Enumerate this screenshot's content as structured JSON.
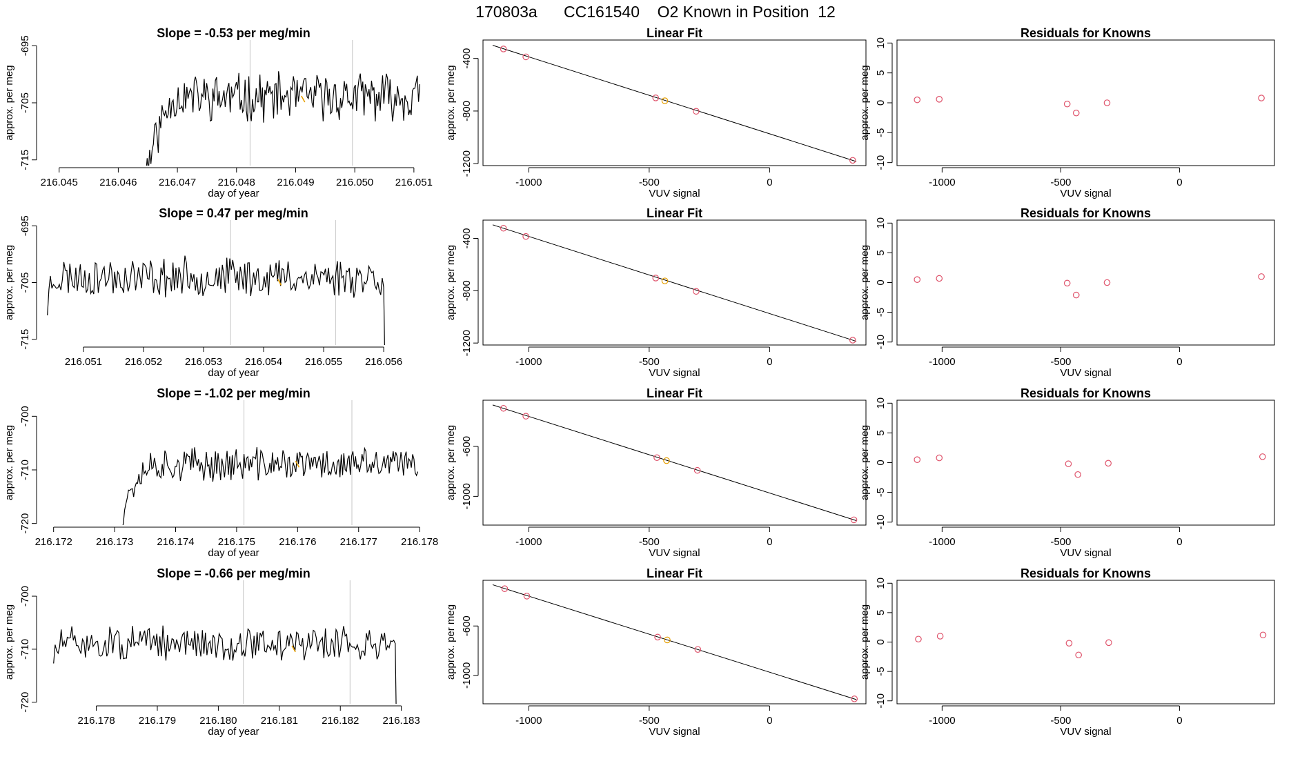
{
  "main_title": "170803a      CC161540    O2 Known in Position  12",
  "colors": {
    "line": "#000000",
    "marker_orange": "#e69f00",
    "marker_red": "#df536b",
    "vline": "#cfcfcf",
    "axis": "#000000"
  },
  "chart_data": [
    {
      "row": 1,
      "col": 1,
      "type": "line",
      "title": "Slope =  -0.53  per meg/min",
      "xlabel": "day of year",
      "ylabel": "approx. per meg",
      "xlim": [
        216.0447,
        216.0512
      ],
      "ylim": [
        -716,
        -694
      ],
      "xticks": [
        216.045,
        216.046,
        216.047,
        216.048,
        216.049,
        216.05,
        216.051
      ],
      "xtick_labels": [
        "216.045",
        "216.046",
        "216.047",
        "216.048",
        "216.049",
        "216.050",
        "216.051"
      ],
      "yticks": [
        -715,
        -705,
        -695
      ],
      "ytick_labels": [
        "-715",
        "-705",
        "-695"
      ],
      "x_start": 216.0463,
      "x_end": 216.0511,
      "ramp_start": -730,
      "level": -704,
      "ramp_frac": 0.13,
      "amp": 3.6,
      "seed": 11,
      "vlines": [
        216.04823,
        216.04996
      ],
      "marker_x": 216.04912,
      "marker_y": -704.4,
      "dip_end": false
    },
    {
      "row": 1,
      "col": 2,
      "type": "scatter",
      "title": "Linear Fit",
      "xlabel": "VUV signal",
      "ylabel": "approx. per meg",
      "xlim": [
        -1190,
        400
      ],
      "ylim": [
        -1215,
        -260
      ],
      "xticks": [
        -1000,
        -500,
        0
      ],
      "xtick_labels": [
        "-1000",
        "-500",
        "0"
      ],
      "yticks": [
        -1200,
        -800,
        -400
      ],
      "ytick_labels": [
        "-1200",
        "-800",
        "-400"
      ],
      "points": [
        [
          -1105,
          -328
        ],
        [
          -1012,
          -388
        ],
        [
          -473,
          -700
        ],
        [
          -435,
          -722
        ],
        [
          -305,
          -802
        ],
        [
          345,
          -1175
        ]
      ],
      "orange_index": 3,
      "fit_line": [
        [
          -1150,
          -300
        ],
        [
          360,
          -1184
        ]
      ]
    },
    {
      "row": 1,
      "col": 3,
      "type": "scatter",
      "title": "Residuals for Knowns",
      "xlabel": "VUV signal",
      "ylabel": "approx. per meg",
      "xlim": [
        -1190,
        400
      ],
      "ylim": [
        -10.5,
        10.5
      ],
      "xticks": [
        -1000,
        -500,
        0
      ],
      "xtick_labels": [
        "-1000",
        "-500",
        "0"
      ],
      "yticks": [
        -10,
        -5,
        0,
        5,
        10
      ],
      "ytick_labels": [
        "-10",
        "-5",
        "0",
        "5",
        "10"
      ],
      "points": [
        [
          -1105,
          0.5
        ],
        [
          -1012,
          0.6
        ],
        [
          -473,
          -0.2
        ],
        [
          -435,
          -1.7
        ],
        [
          -305,
          0.0
        ],
        [
          345,
          0.8
        ]
      ]
    },
    {
      "row": 2,
      "col": 1,
      "type": "line",
      "title": "Slope =  0.47  per meg/min",
      "xlabel": "day of year",
      "ylabel": "approx. per meg",
      "xlim": [
        216.0503,
        216.0567
      ],
      "ylim": [
        -716,
        -694
      ],
      "xticks": [
        216.051,
        216.052,
        216.053,
        216.054,
        216.055,
        216.056
      ],
      "xtick_labels": [
        "216.051",
        "216.052",
        "216.053",
        "216.054",
        "216.055",
        "216.056"
      ],
      "yticks": [
        -715,
        -705,
        -695
      ],
      "ytick_labels": [
        "-715",
        "-705",
        "-695"
      ],
      "x_start": 216.0504,
      "x_end": 216.0561,
      "ramp_start": -709,
      "level": -704,
      "ramp_frac": 0.02,
      "amp": 3.0,
      "seed": 23,
      "vlines": [
        216.05345,
        216.0552
      ],
      "marker_x": 216.05426,
      "marker_y": -705.0,
      "dip_end": true
    },
    {
      "row": 2,
      "col": 2,
      "type": "scatter",
      "title": "Linear Fit",
      "xlabel": "VUV signal",
      "ylabel": "approx. per meg",
      "xlim": [
        -1190,
        400
      ],
      "ylim": [
        -1215,
        -260
      ],
      "xticks": [
        -1000,
        -500,
        0
      ],
      "xtick_labels": [
        "-1000",
        "-500",
        "0"
      ],
      "yticks": [
        -1200,
        -800,
        -400
      ],
      "ytick_labels": [
        "-1200",
        "-800",
        "-400"
      ],
      "points": [
        [
          -1105,
          -322
        ],
        [
          -1012,
          -385
        ],
        [
          -473,
          -703
        ],
        [
          -435,
          -725
        ],
        [
          -305,
          -805
        ],
        [
          345,
          -1178
        ]
      ],
      "orange_index": 3,
      "fit_line": [
        [
          -1150,
          -296
        ],
        [
          360,
          -1187
        ]
      ]
    },
    {
      "row": 2,
      "col": 3,
      "type": "scatter",
      "title": "Residuals for Knowns",
      "xlabel": "VUV signal",
      "ylabel": "approx. per meg",
      "xlim": [
        -1190,
        400
      ],
      "ylim": [
        -10.5,
        10.5
      ],
      "xticks": [
        -1000,
        -500,
        0
      ],
      "xtick_labels": [
        "-1000",
        "-500",
        "0"
      ],
      "yticks": [
        -10,
        -5,
        0,
        5,
        10
      ],
      "ytick_labels": [
        "-10",
        "-5",
        "0",
        "5",
        "10"
      ],
      "points": [
        [
          -1105,
          0.5
        ],
        [
          -1012,
          0.7
        ],
        [
          -473,
          -0.1
        ],
        [
          -435,
          -2.1
        ],
        [
          -305,
          0.0
        ],
        [
          345,
          1.0
        ]
      ]
    },
    {
      "row": 3,
      "col": 1,
      "type": "line",
      "title": "Slope =  -1.02  per meg/min",
      "xlabel": "day of year",
      "ylabel": "approx. per meg",
      "xlim": [
        216.1718,
        216.1781
      ],
      "ylim": [
        -720.3,
        -697
      ],
      "xticks": [
        216.172,
        216.173,
        216.174,
        216.175,
        216.176,
        216.177,
        216.178
      ],
      "xtick_labels": [
        "216.172",
        "216.173",
        "216.174",
        "216.175",
        "216.176",
        "216.177",
        "216.178"
      ],
      "yticks": [
        -720,
        -710,
        -700
      ],
      "ytick_labels": [
        "-720",
        "-710",
        "-700"
      ],
      "x_start": 216.1731,
      "x_end": 216.17797,
      "ramp_start": -721,
      "level": -709,
      "ramp_frac": 0.09,
      "amp": 2.7,
      "seed": 37,
      "vlines": [
        216.17512,
        216.17689
      ],
      "marker_x": 216.17599,
      "marker_y": -709.0,
      "dip_end": false
    },
    {
      "row": 3,
      "col": 2,
      "type": "scatter",
      "title": "Linear Fit",
      "xlabel": "VUV signal",
      "ylabel": "approx. per meg",
      "xlim": [
        -1190,
        400
      ],
      "ylim": [
        -1230,
        -230
      ],
      "xticks": [
        -1000,
        -500,
        0
      ],
      "xtick_labels": [
        "-1000",
        "-500",
        "0"
      ],
      "yticks": [
        -1000,
        -600
      ],
      "ytick_labels": [
        "-1000",
        "-600"
      ],
      "points": [
        [
          -1105,
          -295
        ],
        [
          -1012,
          -358
        ],
        [
          -468,
          -690
        ],
        [
          -428,
          -714
        ],
        [
          -300,
          -792
        ],
        [
          350,
          -1188
        ]
      ],
      "orange_index": 3,
      "fit_line": [
        [
          -1150,
          -268
        ],
        [
          360,
          -1194
        ]
      ]
    },
    {
      "row": 3,
      "col": 3,
      "type": "scatter",
      "title": "Residuals for Knowns",
      "xlabel": "VUV signal",
      "ylabel": "approx. per meg",
      "xlim": [
        -1190,
        400
      ],
      "ylim": [
        -10.5,
        10.5
      ],
      "xticks": [
        -1000,
        -500,
        0
      ],
      "xtick_labels": [
        "-1000",
        "-500",
        "0"
      ],
      "yticks": [
        -10,
        -5,
        0,
        5,
        10
      ],
      "ytick_labels": [
        "-10",
        "-5",
        "0",
        "5",
        "10"
      ],
      "points": [
        [
          -1105,
          0.5
        ],
        [
          -1012,
          0.8
        ],
        [
          -468,
          -0.2
        ],
        [
          -428,
          -2.0
        ],
        [
          -300,
          -0.1
        ],
        [
          350,
          1.0
        ]
      ]
    },
    {
      "row": 4,
      "col": 1,
      "type": "line",
      "title": "Slope =  -0.66  per meg/min",
      "xlabel": "day of year",
      "ylabel": "approx. per meg",
      "xlim": [
        216.1771,
        216.1834
      ],
      "ylim": [
        -720.3,
        -697
      ],
      "xticks": [
        216.178,
        216.179,
        216.18,
        216.181,
        216.182,
        216.183
      ],
      "xtick_labels": [
        "216.178",
        "216.179",
        "216.180",
        "216.181",
        "216.182",
        "216.183"
      ],
      "yticks": [
        -720,
        -710,
        -700
      ],
      "ytick_labels": [
        "-720",
        "-710",
        "-700"
      ],
      "x_start": 216.1773,
      "x_end": 216.183,
      "ramp_start": -712,
      "level": -709,
      "ramp_frac": 0.02,
      "amp": 2.8,
      "seed": 51,
      "vlines": [
        216.18041,
        216.18216
      ],
      "marker_x": 216.18123,
      "marker_y": -710.0,
      "dip_end": true
    },
    {
      "row": 4,
      "col": 2,
      "type": "scatter",
      "title": "Linear Fit",
      "xlabel": "VUV signal",
      "ylabel": "approx. per meg",
      "xlim": [
        -1190,
        400
      ],
      "ylim": [
        -1230,
        -230
      ],
      "xticks": [
        -1000,
        -500,
        0
      ],
      "xtick_labels": [
        "-1000",
        "-500",
        "0"
      ],
      "yticks": [
        -1000,
        -600
      ],
      "ytick_labels": [
        "-1000",
        "-600"
      ],
      "points": [
        [
          -1100,
          -298
        ],
        [
          -1008,
          -358
        ],
        [
          -465,
          -690
        ],
        [
          -425,
          -713
        ],
        [
          -298,
          -790
        ],
        [
          352,
          -1190
        ]
      ],
      "orange_index": 3,
      "fit_line": [
        [
          -1150,
          -266
        ],
        [
          360,
          -1196
        ]
      ]
    },
    {
      "row": 4,
      "col": 3,
      "type": "scatter",
      "title": "Residuals for Knowns",
      "xlabel": "VUV signal",
      "ylabel": "approx. per meg",
      "xlim": [
        -1190,
        400
      ],
      "ylim": [
        -10.5,
        10.5
      ],
      "xticks": [
        -1000,
        -500,
        0
      ],
      "xtick_labels": [
        "-1000",
        "-500",
        "0"
      ],
      "yticks": [
        -10,
        -5,
        0,
        5,
        10
      ],
      "ytick_labels": [
        "-10",
        "-5",
        "0",
        "5",
        "10"
      ],
      "points": [
        [
          -1100,
          0.5
        ],
        [
          -1008,
          1.0
        ],
        [
          -465,
          -0.2
        ],
        [
          -425,
          -2.2
        ],
        [
          -298,
          -0.1
        ],
        [
          352,
          1.2
        ]
      ]
    }
  ]
}
